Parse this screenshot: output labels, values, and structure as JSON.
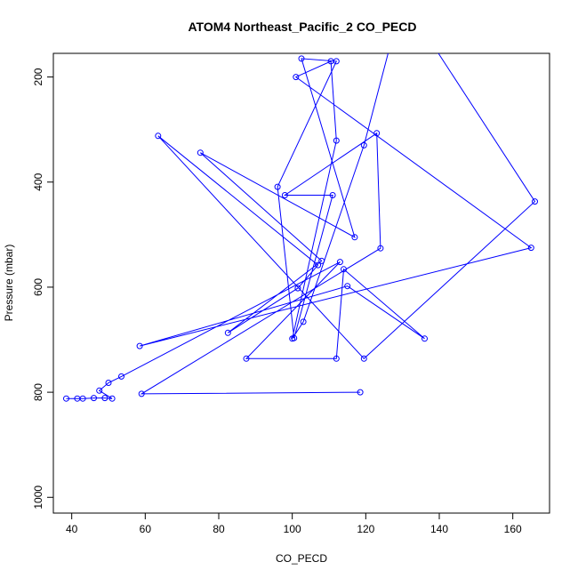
{
  "chart_data": {
    "type": "line",
    "title": "ATOM4 Northeast_Pacific_2 CO_PECD",
    "xlabel": "CO_PECD",
    "ylabel": "Pressure (mbar)",
    "xlim": [
      35,
      170
    ],
    "ylim": [
      1030,
      155
    ],
    "y_reversed": true,
    "xticks": [
      40,
      60,
      80,
      100,
      120,
      140,
      160
    ],
    "yticks": [
      200,
      400,
      600,
      800,
      1000
    ],
    "grid": false,
    "marker": "open-circle",
    "color": "#0000ff",
    "series": [
      {
        "points": [
          [
            38.5,
            812
          ],
          [
            41.5,
            812
          ],
          [
            43,
            812
          ],
          [
            46,
            811
          ],
          [
            49,
            811
          ],
          [
            51,
            812
          ],
          [
            47.5,
            797
          ],
          [
            50,
            782
          ],
          [
            53.5,
            770
          ],
          [
            113,
            552
          ],
          [
            87.5,
            736
          ],
          [
            112,
            736
          ],
          [
            114,
            566
          ],
          [
            136,
            698
          ],
          [
            115,
            598
          ],
          [
            58.5,
            712
          ],
          [
            165,
            525
          ],
          [
            101,
            200
          ],
          [
            110.5,
            170
          ],
          [
            112,
            321
          ],
          [
            100,
            698
          ],
          [
            103,
            666
          ],
          [
            119.5,
            330
          ],
          [
            130,
            50
          ],
          [
            166,
            437
          ],
          [
            119.5,
            736
          ],
          [
            63.5,
            312
          ],
          [
            107,
            558
          ],
          [
            101.5,
            602
          ],
          [
            82.5,
            687
          ],
          [
            108,
            550
          ],
          [
            75,
            344
          ],
          [
            117,
            505
          ],
          [
            102.5,
            165
          ],
          [
            112,
            170
          ],
          [
            96,
            409
          ],
          [
            100.5,
            697
          ],
          [
            111,
            425
          ],
          [
            98,
            425
          ],
          [
            123,
            307
          ],
          [
            124,
            526
          ],
          [
            59,
            803
          ],
          [
            118.5,
            800
          ]
        ]
      }
    ]
  }
}
